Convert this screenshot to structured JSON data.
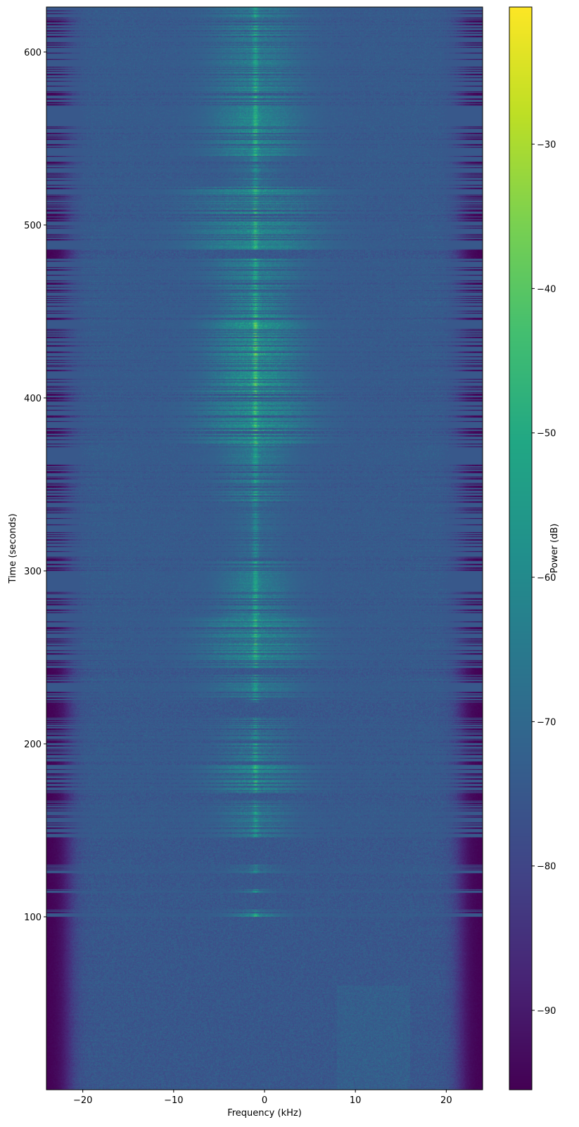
{
  "chart_data": {
    "type": "heatmap",
    "title": "",
    "xlabel": "Frequency (kHz)",
    "ylabel": "Time (seconds)",
    "colorbar_label": "Power (dB)",
    "colormap": "viridis",
    "xlim": [
      -24,
      24
    ],
    "ylim": [
      0,
      626
    ],
    "clim": [
      -95.5,
      -20.5
    ],
    "x_ticks": [
      -20,
      -10,
      0,
      10,
      20
    ],
    "x_tick_labels": [
      "−20",
      "−10",
      "0",
      "10",
      "20"
    ],
    "y_ticks": [
      100,
      200,
      300,
      400,
      500,
      600
    ],
    "y_tick_labels": [
      "100",
      "200",
      "300",
      "400",
      "500",
      "600"
    ],
    "colorbar_ticks": [
      -30,
      -40,
      -50,
      -60,
      -70,
      -80,
      -90
    ],
    "colorbar_tick_labels": [
      "−30",
      "−40",
      "−50",
      "−60",
      "−70",
      "−80",
      "−90"
    ],
    "noise_floor_db": -75,
    "band_edge_khz": 21.5,
    "carrier_khz": -1,
    "signal_segments": [
      {
        "t": [
          100,
          104
        ],
        "peak_db": -45,
        "width_khz": 3
      },
      {
        "t": [
          114,
          116
        ],
        "peak_db": -52,
        "width_khz": 2
      },
      {
        "t": [
          125,
          130
        ],
        "peak_db": -50,
        "width_khz": 3
      },
      {
        "t": [
          146,
          167
        ],
        "peak_db": -48,
        "width_khz": 4
      },
      {
        "t": [
          171,
          188
        ],
        "peak_db": -42,
        "width_khz": 5
      },
      {
        "t": [
          190,
          215
        ],
        "peak_db": -47,
        "width_khz": 4
      },
      {
        "t": [
          224,
          226
        ],
        "peak_db": -50,
        "width_khz": 1
      },
      {
        "t": [
          227,
          240
        ],
        "peak_db": -47,
        "width_khz": 5
      },
      {
        "t": [
          244,
          273
        ],
        "peak_db": -41,
        "width_khz": 6
      },
      {
        "t": [
          273,
          306
        ],
        "peak_db": -46,
        "width_khz": 4
      },
      {
        "t": [
          306,
          340
        ],
        "peak_db": -55,
        "width_khz": 3
      },
      {
        "t": [
          340,
          373
        ],
        "peak_db": -47,
        "width_khz": 4
      },
      {
        "t": [
          373,
          406
        ],
        "peak_db": -38,
        "width_khz": 6
      },
      {
        "t": [
          406,
          448
        ],
        "peak_db": -36,
        "width_khz": 5
      },
      {
        "t": [
          448,
          464
        ],
        "peak_db": -44,
        "width_khz": 4
      },
      {
        "t": [
          464,
          481
        ],
        "peak_db": -44,
        "width_khz": 5
      },
      {
        "t": [
          485,
          522
        ],
        "peak_db": -39,
        "width_khz": 7
      },
      {
        "t": [
          522,
          540
        ],
        "peak_db": -52,
        "width_khz": 3
      },
      {
        "t": [
          540,
          580
        ],
        "peak_db": -42,
        "width_khz": 5
      },
      {
        "t": [
          580,
          626
        ],
        "peak_db": -46,
        "width_khz": 5
      }
    ]
  }
}
